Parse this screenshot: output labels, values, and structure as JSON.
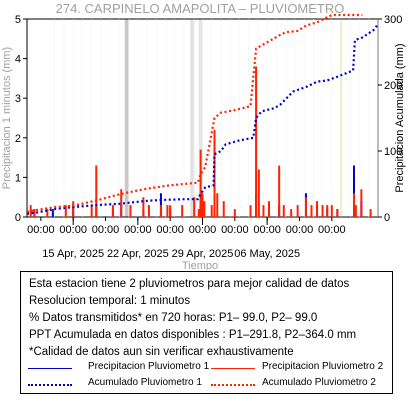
{
  "chart_data": {
    "type": "line",
    "title": "274. CARPINELO AMAPOLITA – PLUVIOMETRO",
    "xlabel": "Tiempo",
    "ylabel_left": "Precipitacion 1 minutos (mm)",
    "ylabel_right": "Precipitacion Acumulada (mm)",
    "ylim_left": [
      0,
      5
    ],
    "ylim_right": [
      0,
      300
    ],
    "left_ticks": [
      "0",
      "1",
      "2",
      "3",
      "4",
      "5"
    ],
    "right_ticks": [
      "0",
      "100",
      "200",
      "300"
    ],
    "x_range_days": [
      -3,
      35
    ],
    "x_minor_labels": [
      "00:00",
      "00:00",
      "00:00",
      "00:00",
      "00:00",
      "00:00",
      "00:00",
      "00:00",
      "00:00",
      "00:00"
    ],
    "x_major_labels": [
      "15 Apr, 2025",
      "22 Apr, 2025",
      "29 Apr, 2025",
      "06 May, 2025"
    ],
    "series": [
      {
        "name": "Precipitacion Pluviometro 1",
        "axis": "left",
        "color": "#0000cc",
        "style": "solid",
        "bars": [
          [
            -2.2,
            0.2
          ],
          [
            -0.2,
            0.2
          ],
          [
            2,
            0.3
          ],
          [
            4.5,
            0.3
          ],
          [
            6.3,
            0.2
          ],
          [
            7.2,
            0.3
          ],
          [
            9.6,
            0.2
          ],
          [
            11.5,
            0.6
          ],
          [
            12.5,
            0.2
          ],
          [
            15.8,
            0.3
          ],
          [
            17.3,
            0.4
          ],
          [
            21.8,
            0.6
          ],
          [
            24.3,
            0.3
          ],
          [
            27.2,
            0.6
          ],
          [
            28.4,
            0.3
          ],
          [
            29.5,
            0.2
          ],
          [
            30.6,
            0.2
          ],
          [
            32.4,
            1.3
          ],
          [
            33.2,
            0.4
          ]
        ]
      },
      {
        "name": "Precipitacion Pluviometro 2",
        "axis": "left",
        "color": "#ff2200",
        "style": "solid",
        "bars": [
          [
            -2.6,
            0.3
          ],
          [
            -2.2,
            0.2
          ],
          [
            -0.8,
            0.2
          ],
          [
            1.2,
            0.3
          ],
          [
            2,
            0.4
          ],
          [
            4,
            0.3
          ],
          [
            4.5,
            1.3
          ],
          [
            6.3,
            0.3
          ],
          [
            7.2,
            0.7
          ],
          [
            8.2,
            0.3
          ],
          [
            9.6,
            0.5
          ],
          [
            10.2,
            0.3
          ],
          [
            11.5,
            0.3
          ],
          [
            12.2,
            0.3
          ],
          [
            12.5,
            0.3
          ],
          [
            13.8,
            0.3
          ],
          [
            15.1,
            0.5
          ],
          [
            15.6,
            0.2
          ],
          [
            15.8,
            1.7
          ],
          [
            16,
            0.6
          ],
          [
            16.2,
            0.4
          ],
          [
            17,
            0.3
          ],
          [
            17.3,
            2.2
          ],
          [
            17.6,
            0.6
          ],
          [
            18.3,
            0.4
          ],
          [
            19.5,
            0.2
          ],
          [
            21.2,
            0.3
          ],
          [
            21.8,
            3.8
          ],
          [
            22.1,
            1.2
          ],
          [
            22.6,
            0.3
          ],
          [
            23.2,
            0.4
          ],
          [
            24.3,
            1.3
          ],
          [
            24.8,
            0.3
          ],
          [
            25.6,
            0.2
          ],
          [
            26.3,
            0.3
          ],
          [
            27.2,
            0.5
          ],
          [
            27.8,
            0.3
          ],
          [
            28.4,
            0.4
          ],
          [
            29,
            0.3
          ],
          [
            29.5,
            0.3
          ],
          [
            30,
            0.3
          ],
          [
            30.6,
            0.2
          ],
          [
            32.4,
            0.6
          ],
          [
            32.6,
            0.3
          ],
          [
            33.2,
            0.7
          ],
          [
            34.2,
            0.2
          ]
        ]
      },
      {
        "name": "Acumulado Pluviometro 1",
        "axis": "right",
        "color": "#0000cc",
        "style": "dotted",
        "points": [
          [
            -3,
            5
          ],
          [
            -2.2,
            6
          ],
          [
            0,
            12
          ],
          [
            2,
            15
          ],
          [
            4.5,
            18
          ],
          [
            7,
            20
          ],
          [
            9.6,
            24
          ],
          [
            10.5,
            25
          ],
          [
            12,
            26
          ],
          [
            14,
            27
          ],
          [
            15.5,
            27
          ],
          [
            15.8,
            35
          ],
          [
            16.3,
            45
          ],
          [
            17.2,
            48
          ],
          [
            17.3,
            95
          ],
          [
            18,
            100
          ],
          [
            18.5,
            110
          ],
          [
            20,
            116
          ],
          [
            21.5,
            120
          ],
          [
            21.8,
            150
          ],
          [
            22.4,
            160
          ],
          [
            23.8,
            165
          ],
          [
            24.4,
            170
          ],
          [
            25.8,
            190
          ],
          [
            27.2,
            197
          ],
          [
            28.4,
            205
          ],
          [
            29.5,
            207
          ],
          [
            30.5,
            212
          ],
          [
            32.3,
            222
          ],
          [
            32.5,
            268
          ],
          [
            33.3,
            272
          ],
          [
            34.5,
            283
          ],
          [
            35,
            292
          ]
        ]
      },
      {
        "name": "Acumulado Pluviometro 2",
        "axis": "right",
        "color": "#ff2200",
        "style": "dotted",
        "points": [
          [
            -3,
            8
          ],
          [
            -2.2,
            10
          ],
          [
            0,
            15
          ],
          [
            2,
            17
          ],
          [
            4.5,
            25
          ],
          [
            7.2,
            35
          ],
          [
            9.6,
            42
          ],
          [
            10.5,
            44
          ],
          [
            12.5,
            48
          ],
          [
            14,
            50
          ],
          [
            15.5,
            52
          ],
          [
            15.8,
            65
          ],
          [
            16.3,
            76
          ],
          [
            17.3,
            150
          ],
          [
            18,
            158
          ],
          [
            19.5,
            162
          ],
          [
            21.2,
            168
          ],
          [
            21.8,
            255
          ],
          [
            22.4,
            260
          ],
          [
            24.3,
            275
          ],
          [
            25,
            280
          ],
          [
            26.3,
            282
          ],
          [
            27.2,
            290
          ],
          [
            28.4,
            295
          ],
          [
            30,
            315
          ],
          [
            31,
            320
          ],
          [
            32,
            330
          ],
          [
            33.3,
            364
          ]
        ]
      }
    ],
    "vertical_markers": [
      {
        "x": 7.8,
        "color": "#c8c8c8",
        "style": "band"
      },
      {
        "x": 14.9,
        "color": "#e0e0e0",
        "style": "band"
      },
      {
        "x": 15.8,
        "color": "#e6e6e6",
        "style": "band"
      },
      {
        "x": 31,
        "color": "#a8e040",
        "style": "line"
      }
    ],
    "grid": true
  },
  "info": {
    "lines": [
      "Esta estacion tiene 2 pluviometros para mejor calidad de datos",
      "Resolucion temporal: 1 minutos",
      "% Datos transmitidos* en 720 horas: P1– 99.0, P2– 99.0",
      "PPT Acumulada en datos disponibles : P1–291.8, P2–364.0 mm",
      "*Calidad de datos aun sin verificar exhaustivamente"
    ],
    "legend": [
      {
        "label": "Precipitacion Pluviometro 1",
        "color": "#0000cc",
        "style": "solid"
      },
      {
        "label": "Precipitacion Pluviometro 2",
        "color": "#ff2200",
        "style": "solid"
      },
      {
        "label": "Acumulado Pluviometro 1",
        "color": "#0000cc",
        "style": "dotted"
      },
      {
        "label": "Acumulado Pluviometro 2",
        "color": "#ff2200",
        "style": "dotted"
      }
    ]
  }
}
